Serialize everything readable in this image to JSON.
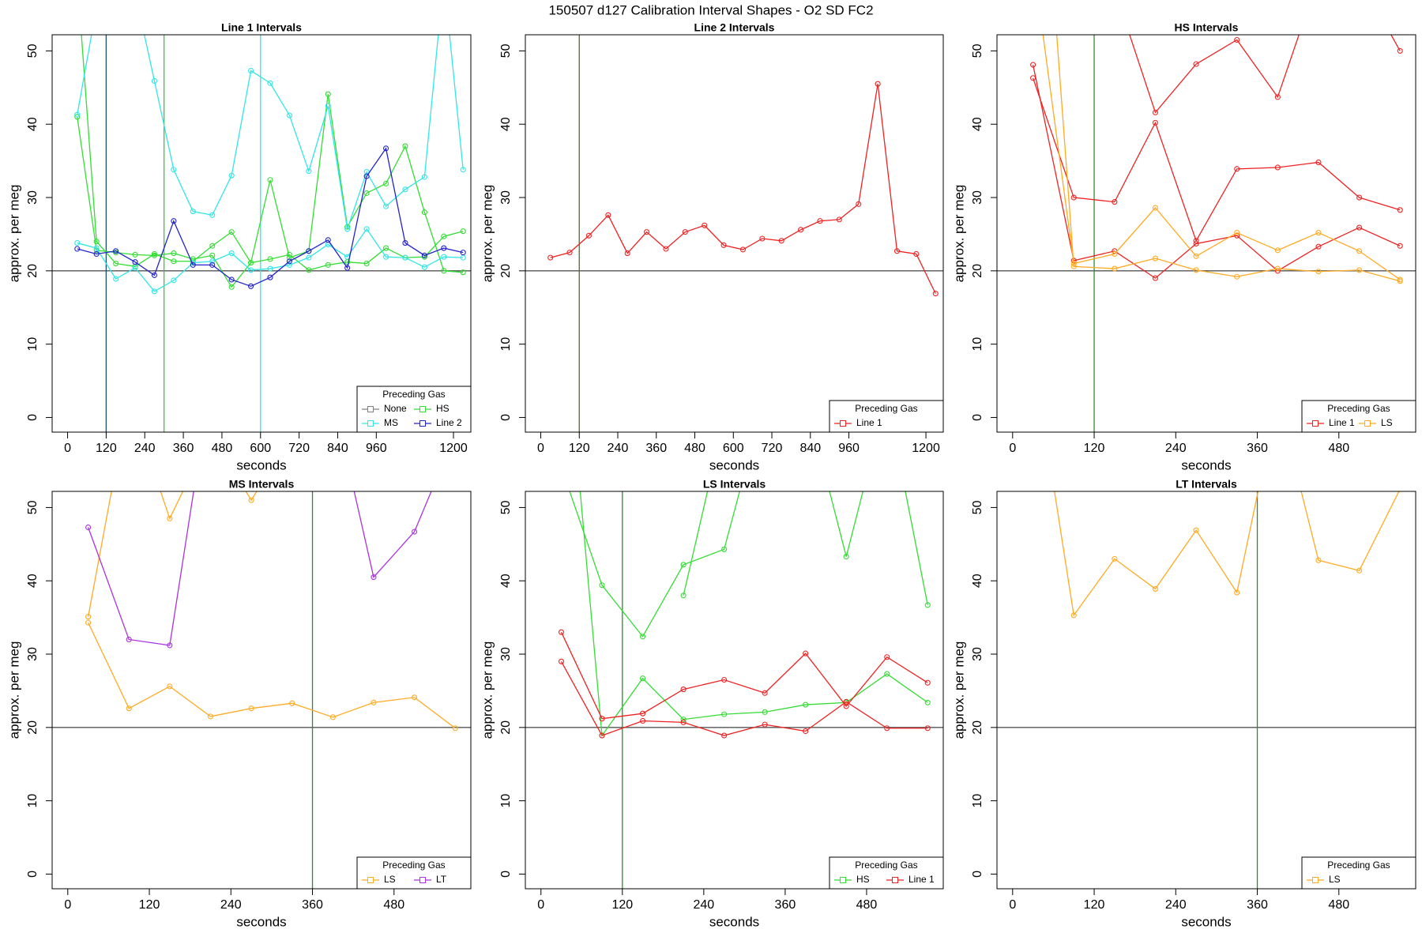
{
  "title": "150507   d127   Calibration Interval Shapes - O2 SD FC2",
  "chart_data": [
    {
      "type": "line",
      "title": "Line 1 Intervals",
      "xlabel": "seconds",
      "ylabel": "approx. per meg",
      "xlim": [
        -48,
        1254
      ],
      "ylim": [
        -2,
        52.2
      ],
      "xticks": [
        0,
        120,
        240,
        360,
        480,
        600,
        720,
        840,
        960,
        1200
      ],
      "yticks": [
        0,
        10,
        20,
        30,
        40,
        50
      ],
      "hline": {
        "y": 20,
        "color": "#555555"
      },
      "vlines": [
        {
          "x": 120,
          "color": "#1f4f6f"
        },
        {
          "x": 300,
          "color": "#33cc33"
        },
        {
          "x": 600,
          "color": "#33e6e6"
        }
      ],
      "legend": {
        "title": "Preceding Gas",
        "position": "bottomright",
        "ncol": 2
      },
      "series": [
        {
          "name": "None",
          "color": "#808080",
          "runs": []
        },
        {
          "name": "HS",
          "color": "#33dd33",
          "runs": [
            {
              "x": [
                30,
                90,
                150,
                210,
                270,
                330,
                390,
                450,
                510,
                570,
                630,
                690,
                750,
                810,
                870,
                930,
                990,
                1050,
                1110,
                1170,
                1230
              ],
              "values": [
                60,
                24,
                21,
                20.6,
                22.3,
                21.3,
                21.3,
                23.4,
                25.3,
                21.1,
                32.4,
                21.8,
                22.7,
                44.1,
                26,
                30.6,
                31.9,
                37,
                28,
                20,
                19.8
              ]
            },
            {
              "x": [
                30,
                90,
                150,
                210,
                270,
                330,
                390,
                450,
                510,
                570,
                630,
                690,
                750,
                810,
                870,
                930,
                990,
                1050,
                1110,
                1170,
                1230
              ],
              "values": [
                41,
                22.8,
                22.5,
                22.2,
                22.1,
                22.4,
                21.6,
                22.1,
                17.8,
                21.1,
                21.6,
                22.2,
                20.1,
                20.8,
                21.2,
                21,
                23.1,
                21.8,
                21.9,
                24.7,
                25.4
              ]
            }
          ]
        },
        {
          "name": "MS",
          "color": "#33e6e6",
          "runs": [
            {
              "x": [
                30,
                90,
                150,
                210,
                270,
                330,
                390,
                450,
                510,
                570,
                630,
                690,
                750,
                810,
                870,
                930,
                990,
                1050,
                1110,
                1170,
                1230
              ],
              "values": [
                41.3,
                56,
                60,
                58,
                45.9,
                33.8,
                28.1,
                27.6,
                33,
                47.3,
                45.6,
                41.2,
                33.6,
                42.5,
                25.7,
                33.5,
                28.8,
                31.1,
                32.8,
                60,
                33.8
              ]
            },
            {
              "x": [
                30,
                90,
                150,
                210,
                270,
                330,
                390,
                450,
                510,
                570,
                630,
                690,
                750,
                810,
                870,
                930,
                990,
                1050,
                1110,
                1170,
                1230
              ],
              "values": [
                23.8,
                23.1,
                18.9,
                20.4,
                17.2,
                18.7,
                21.1,
                21.3,
                22.4,
                20.1,
                20.3,
                20.8,
                21.8,
                23.6,
                21.9,
                25.7,
                21.9,
                21.8,
                20.5,
                21.9,
                21.8
              ]
            }
          ]
        },
        {
          "name": "Line 2",
          "color": "#2323cc",
          "runs": [
            {
              "x": [
                30,
                90,
                150,
                210,
                270,
                330,
                390,
                450,
                510,
                570,
                630,
                690,
                750,
                810,
                870,
                930,
                990,
                1050,
                1110,
                1170,
                1230
              ],
              "values": [
                23,
                22.3,
                22.7,
                21.2,
                19.4,
                26.8,
                20.8,
                20.8,
                18.8,
                17.9,
                19.1,
                21.3,
                22.7,
                24.2,
                20.4,
                32.9,
                36.7,
                23.8,
                22.1,
                23.1,
                22.5
              ]
            }
          ]
        }
      ]
    },
    {
      "type": "line",
      "title": "Line 2 Intervals",
      "xlabel": "seconds",
      "ylabel": "approx. per meg",
      "xlim": [
        -48,
        1254
      ],
      "ylim": [
        -2,
        52.2
      ],
      "xticks": [
        0,
        120,
        240,
        360,
        480,
        600,
        720,
        840,
        960,
        1200
      ],
      "yticks": [
        0,
        10,
        20,
        30,
        40,
        50
      ],
      "hline": {
        "y": 20,
        "color": "#555555"
      },
      "vlines": [
        {
          "x": 120,
          "color": "#5a6b1f"
        }
      ],
      "legend": {
        "title": "Preceding Gas",
        "position": "bottomright",
        "ncol": 2
      },
      "series": [
        {
          "name": "Line 1",
          "color": "#ee2222",
          "runs": [
            {
              "x": [
                30,
                90,
                150,
                210,
                270,
                330,
                390,
                450,
                510,
                570,
                630,
                690,
                750,
                810,
                870,
                930,
                990,
                1050,
                1110,
                1170,
                1230
              ],
              "values": [
                21.8,
                22.5,
                24.8,
                27.6,
                22.4,
                25.3,
                23,
                25.3,
                26.2,
                23.5,
                22.9,
                24.4,
                24.1,
                25.6,
                26.8,
                27,
                29.1,
                45.5,
                22.7,
                22.3,
                16.9
              ]
            }
          ]
        }
      ]
    },
    {
      "type": "line",
      "title": "HS Intervals",
      "xlabel": "seconds",
      "ylabel": "approx. per meg",
      "xlim": [
        -23,
        593
      ],
      "ylim": [
        -2,
        52.2
      ],
      "xticks": [
        0,
        120,
        240,
        360,
        480
      ],
      "yticks": [
        0,
        10,
        20,
        30,
        40,
        50
      ],
      "hline": {
        "y": 20,
        "color": "#555555"
      },
      "vlines": [
        {
          "x": 120,
          "color": "#2e8b2e"
        }
      ],
      "legend": {
        "title": "Preceding Gas",
        "position": "bottomright",
        "ncol": 2
      },
      "series": [
        {
          "name": "Line 1",
          "color": "#ee2222",
          "runs": [
            {
              "x": [
                30,
                90,
                150,
                210,
                270,
                330,
                390,
                450,
                510,
                570
              ],
              "values": [
                46.3,
                30,
                29.4,
                40.2,
                24.1,
                33.9,
                34.1,
                34.8,
                30,
                28.3
              ]
            },
            {
              "x": [
                30,
                90,
                150,
                210,
                270,
                330,
                390,
                450,
                510,
                570
              ],
              "values": [
                48.1,
                21.4,
                22.7,
                19,
                23.7,
                24.8,
                20,
                23.3,
                25.9,
                23.4
              ]
            },
            {
              "x": [
                30,
                90,
                150,
                210,
                270,
                330,
                390,
                450,
                510,
                570
              ],
              "values": [
                70,
                65,
                58.4,
                41.6,
                48.2,
                51.5,
                43.7,
                60,
                60,
                50
              ]
            }
          ]
        },
        {
          "name": "LS",
          "color": "#ffaa22",
          "runs": [
            {
              "x": [
                30,
                90,
                150,
                210,
                270,
                330,
                390,
                450,
                510,
                570
              ],
              "values": [
                62.3,
                21,
                22.3,
                28.6,
                22,
                25.2,
                22.8,
                25.2,
                22.7,
                18.8
              ]
            },
            {
              "x": [
                30,
                90,
                150,
                210,
                270,
                330,
                390,
                450,
                510,
                570
              ],
              "values": [
                96,
                20.6,
                20.3,
                21.7,
                20.1,
                19.2,
                20.3,
                19.9,
                20.1,
                18.6
              ]
            }
          ]
        }
      ]
    },
    {
      "type": "line",
      "title": "MS Intervals",
      "xlabel": "seconds",
      "ylabel": "approx. per meg",
      "xlim": [
        -23,
        593
      ],
      "ylim": [
        -2,
        52.2
      ],
      "xticks": [
        0,
        120,
        240,
        360,
        480
      ],
      "yticks": [
        0,
        10,
        20,
        30,
        40,
        50
      ],
      "hline": {
        "y": 20,
        "color": "#555555"
      },
      "vlines": [
        {
          "x": 360,
          "color": "#2e8b2e"
        }
      ],
      "legend": {
        "title": "Preceding Gas",
        "position": "bottomright",
        "ncol": 2
      },
      "series": [
        {
          "name": "LS",
          "color": "#ffaa22",
          "runs": [
            {
              "x": [
                30,
                90,
                150,
                210,
                270,
                330,
                390,
                450,
                510,
                570
              ],
              "values": [
                35.1,
                65,
                48.5,
                60,
                51,
                60,
                60,
                60,
                60,
                60
              ]
            },
            {
              "x": [
                30,
                90,
                150,
                210,
                270,
                330,
                390,
                450,
                510,
                570
              ],
              "values": [
                34.3,
                22.6,
                25.6,
                21.5,
                22.6,
                23.3,
                21.4,
                23.4,
                24.1,
                19.9
              ]
            }
          ]
        },
        {
          "name": "LT",
          "color": "#aa33dd",
          "runs": [
            {
              "x": [
                30,
                90,
                150,
                210,
                270,
                330,
                390,
                450,
                510,
                570
              ],
              "values": [
                47.3,
                32,
                31.2,
                67,
                70,
                70,
                65,
                40.5,
                46.7,
                60
              ]
            }
          ]
        }
      ]
    },
    {
      "type": "line",
      "title": "LS Intervals",
      "xlabel": "seconds",
      "ylabel": "approx. per meg",
      "xlim": [
        -23,
        593
      ],
      "ylim": [
        -2,
        52.2
      ],
      "xticks": [
        0,
        120,
        240,
        360,
        480
      ],
      "yticks": [
        0,
        10,
        20,
        30,
        40,
        50
      ],
      "hline": {
        "y": 20,
        "color": "#555555"
      },
      "vlines": [
        {
          "x": 120,
          "color": "#2e8b2e"
        }
      ],
      "legend": {
        "title": "Preceding Gas",
        "position": "bottomright",
        "ncol": 2
      },
      "series": [
        {
          "name": "HS",
          "color": "#33dd33",
          "runs": [
            {
              "x": [
                30,
                90,
                150,
                210,
                270,
                330,
                390,
                450,
                510,
                570
              ],
              "values": [
                55.5,
                39.4,
                32.4,
                42.2,
                44.3,
                65,
                65,
                43.3,
                65,
                36.7
              ]
            },
            {
              "x": [
                30,
                90,
                150,
                210,
                270,
                330,
                390,
                450,
                510,
                570
              ],
              "values": [
                81,
                18.9,
                26.7,
                21.1,
                21.8,
                22.1,
                23.1,
                23.4,
                27.3,
                23.4
              ]
            },
            {
              "x": [
                210,
                270
              ],
              "values": [
                38,
                62
              ]
            }
          ]
        },
        {
          "name": "Line 1",
          "color": "#ee2222",
          "runs": [
            {
              "x": [
                30,
                90,
                150,
                210,
                270,
                330,
                390,
                450,
                510,
                570
              ],
              "values": [
                33,
                21.2,
                21.9,
                25.2,
                26.5,
                24.7,
                30.1,
                22.9,
                29.6,
                26.1
              ]
            },
            {
              "x": [
                30,
                90,
                150,
                210,
                270,
                330,
                390,
                450,
                510,
                570
              ],
              "values": [
                29,
                18.9,
                20.9,
                20.7,
                18.9,
                20.4,
                19.5,
                23.5,
                19.9,
                19.9
              ]
            }
          ]
        }
      ]
    },
    {
      "type": "line",
      "title": "LT Intervals",
      "xlabel": "seconds",
      "ylabel": "approx. per meg",
      "xlim": [
        -23,
        593
      ],
      "ylim": [
        -2,
        52.2
      ],
      "xticks": [
        0,
        120,
        240,
        360,
        480
      ],
      "yticks": [
        0,
        10,
        20,
        30,
        40,
        50
      ],
      "hline": {
        "y": 20,
        "color": "#555555"
      },
      "vlines": [
        {
          "x": 360,
          "color": "#2e8b2e"
        }
      ],
      "legend": {
        "title": "Preceding Gas",
        "position": "bottomright",
        "ncol": 2
      },
      "series": [
        {
          "name": "LS",
          "color": "#ffaa22",
          "runs": [
            {
              "x": [
                30,
                90,
                150,
                210,
                270,
                330,
                390,
                450,
                510,
                570
              ],
              "values": [
                71,
                35.3,
                43,
                38.9,
                46.9,
                38.4,
                65,
                42.8,
                41.4,
                52.5
              ]
            }
          ]
        }
      ]
    }
  ]
}
